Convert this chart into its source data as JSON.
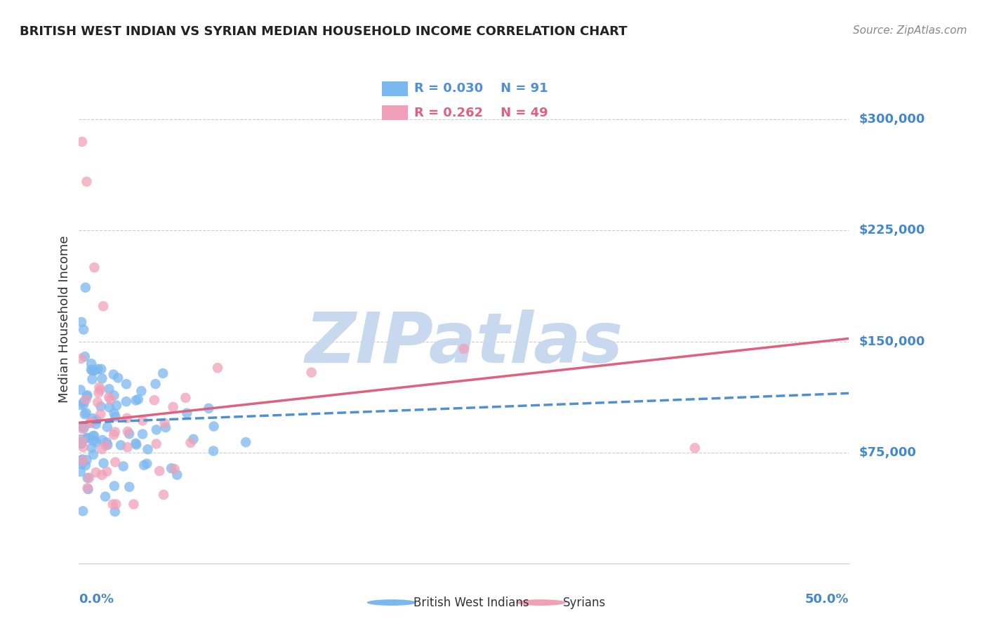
{
  "title": "BRITISH WEST INDIAN VS SYRIAN MEDIAN HOUSEHOLD INCOME CORRELATION CHART",
  "source": "Source: ZipAtlas.com",
  "ylabel": "Median Household Income",
  "ytick_vals": [
    0,
    75000,
    150000,
    225000,
    300000
  ],
  "ytick_labels": [
    "",
    "$75,000",
    "$150,000",
    "$225,000",
    "$300,000"
  ],
  "xlim": [
    0.0,
    0.5
  ],
  "ylim": [
    0,
    330000
  ],
  "watermark": "ZIPatlas",
  "legend_r1": "R = 0.030",
  "legend_n1": "N = 91",
  "legend_r2": "R = 0.262",
  "legend_n2": "N = 49",
  "blue_color": "#7ab8f0",
  "pink_color": "#f0a0b8",
  "blue_line_color": "#5090d0",
  "pink_line_color": "#e06080",
  "title_color": "#222222",
  "axis_label_color": "#4488cc",
  "ytick_label_color": "#4488cc",
  "watermark_color": "#c8d8ee",
  "grid_color": "#cccccc",
  "background_color": "#ffffff",
  "blue_trend_x0": 0.0,
  "blue_trend_x1": 0.5,
  "blue_trend_y0": 95000,
  "blue_trend_y1": 115000,
  "pink_trend_x0": 0.0,
  "pink_trend_x1": 0.5,
  "pink_trend_y0": 95000,
  "pink_trend_y1": 152000,
  "n_blue": 91,
  "n_pink": 49,
  "blue_seed": 42,
  "pink_seed": 77
}
